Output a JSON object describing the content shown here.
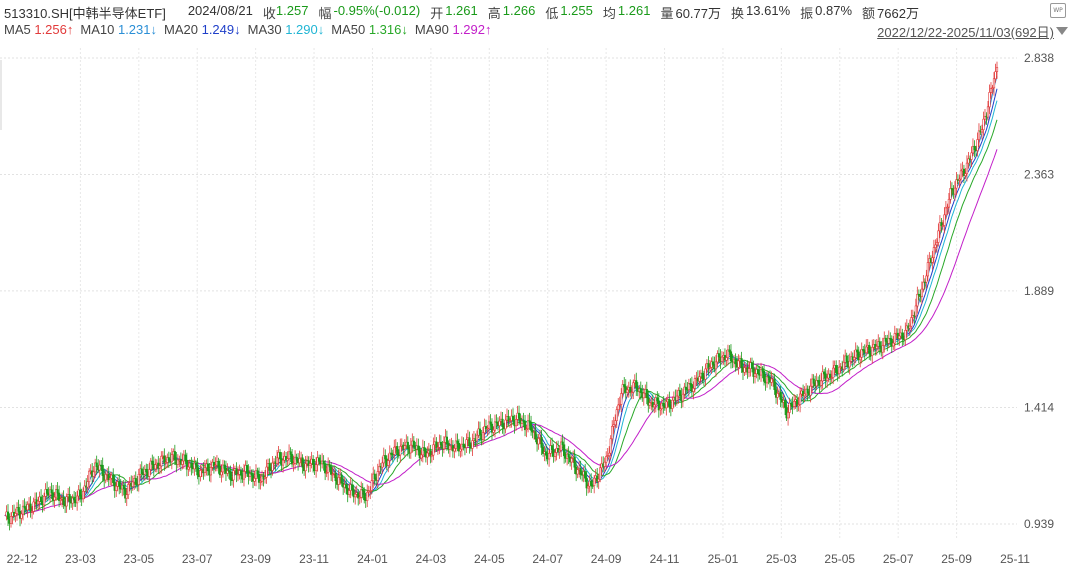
{
  "header": {
    "symbol": "513310.SH[中韩半导体ETF]",
    "date": "2024/08/21",
    "close_label": "收",
    "close": "1.257",
    "change_label": "幅",
    "change": "-0.95%(-0.012)",
    "open_label": "开",
    "open": "1.261",
    "high_label": "高",
    "high": "1.266",
    "low_label": "低",
    "low": "1.255",
    "avg_label": "均",
    "avg": "1.261",
    "volume_label": "量",
    "volume": "60.77万",
    "turnover_label": "换",
    "turnover": "13.61%",
    "amplitude_label": "振",
    "amplitude": "0.87%",
    "amount_label": "额",
    "amount": "7662万"
  },
  "ma_legend": [
    {
      "label": "MA5",
      "value": "1.256",
      "arrow": "↑",
      "color": "#e23b3b"
    },
    {
      "label": "MA10",
      "value": "1.231",
      "arrow": "↓",
      "color": "#2b8fd6"
    },
    {
      "label": "MA20",
      "value": "1.249",
      "arrow": "↓",
      "color": "#1f3fc9"
    },
    {
      "label": "MA30",
      "value": "1.290",
      "arrow": "↓",
      "color": "#21b5d4"
    },
    {
      "label": "MA50",
      "value": "1.316",
      "arrow": "↓",
      "color": "#28a828"
    },
    {
      "label": "MA90",
      "value": "1.292",
      "arrow": "↑",
      "color": "#c21fc9"
    }
  ],
  "date_range": "2022/12/22-2025/11/03(692日)",
  "icons": {
    "watermark": "wp-icon",
    "dropdown": "triangle-down-icon"
  },
  "chart_data": {
    "type": "candlestick-line",
    "y_ticks": [
      "2.838",
      "2.363",
      "1.889",
      "1.414",
      "0.939"
    ],
    "ylim": [
      0.939,
      2.838
    ],
    "x_ticks": [
      "22-12",
      "23-03",
      "23-05",
      "23-07",
      "23-09",
      "23-11",
      "24-01",
      "24-03",
      "24-05",
      "24-07",
      "24-09",
      "24-11",
      "25-01",
      "25-03",
      "25-05",
      "25-07",
      "25-09",
      "25-11"
    ],
    "grid": true,
    "series": [
      {
        "name": "MA5",
        "color": "#e23b3b"
      },
      {
        "name": "MA10",
        "color": "#2b8fd6"
      },
      {
        "name": "MA20",
        "color": "#1f3fc9"
      },
      {
        "name": "MA30",
        "color": "#21b5d4"
      },
      {
        "name": "MA50",
        "color": "#28a828"
      },
      {
        "name": "MA90",
        "color": "#c21fc9"
      }
    ],
    "price_path": [
      [
        "22-12",
        0.96
      ],
      [
        "22-12",
        0.99
      ],
      [
        "23-01",
        1.02
      ],
      [
        "23-02",
        1.07
      ],
      [
        "23-03",
        1.03
      ],
      [
        "23-03",
        1.05
      ],
      [
        "23-04",
        1.18
      ],
      [
        "23-04",
        1.12
      ],
      [
        "23-05",
        1.07
      ],
      [
        "23-05",
        1.14
      ],
      [
        "23-06",
        1.18
      ],
      [
        "23-06",
        1.21
      ],
      [
        "23-07",
        1.19
      ],
      [
        "23-07",
        1.15
      ],
      [
        "23-08",
        1.18
      ],
      [
        "23-08",
        1.14
      ],
      [
        "23-09",
        1.15
      ],
      [
        "23-09",
        1.12
      ],
      [
        "23-10",
        1.2
      ],
      [
        "23-10",
        1.21
      ],
      [
        "23-11",
        1.18
      ],
      [
        "23-11",
        1.19
      ],
      [
        "23-12",
        1.13
      ],
      [
        "24-01",
        1.07
      ],
      [
        "24-01",
        1.05
      ],
      [
        "24-02",
        1.18
      ],
      [
        "24-02",
        1.24
      ],
      [
        "24-03",
        1.26
      ],
      [
        "24-03",
        1.22
      ],
      [
        "24-04",
        1.27
      ],
      [
        "24-04",
        1.25
      ],
      [
        "24-05",
        1.27
      ],
      [
        "24-05",
        1.33
      ],
      [
        "24-06",
        1.35
      ],
      [
        "24-06",
        1.37
      ],
      [
        "24-07",
        1.33
      ],
      [
        "24-07",
        1.22
      ],
      [
        "24-08",
        1.25
      ],
      [
        "24-08",
        1.17
      ],
      [
        "24-09",
        1.09
      ],
      [
        "24-09",
        1.2
      ],
      [
        "24-10",
        1.48
      ],
      [
        "24-10",
        1.5
      ],
      [
        "24-11",
        1.43
      ],
      [
        "24-11",
        1.42
      ],
      [
        "24-12",
        1.47
      ],
      [
        "24-12",
        1.52
      ],
      [
        "25-01",
        1.59
      ],
      [
        "25-01",
        1.63
      ],
      [
        "25-02",
        1.58
      ],
      [
        "25-02",
        1.56
      ],
      [
        "25-03",
        1.52
      ],
      [
        "25-03",
        1.4
      ],
      [
        "25-04",
        1.46
      ],
      [
        "25-04",
        1.52
      ],
      [
        "25-05",
        1.55
      ],
      [
        "25-05",
        1.6
      ],
      [
        "25-06",
        1.64
      ],
      [
        "25-06",
        1.66
      ],
      [
        "25-07",
        1.69
      ],
      [
        "25-07",
        1.72
      ],
      [
        "25-08",
        1.9
      ],
      [
        "25-08",
        2.1
      ],
      [
        "25-09",
        2.3
      ],
      [
        "25-09",
        2.4
      ],
      [
        "25-10",
        2.55
      ],
      [
        "25-10",
        2.8
      ]
    ]
  }
}
